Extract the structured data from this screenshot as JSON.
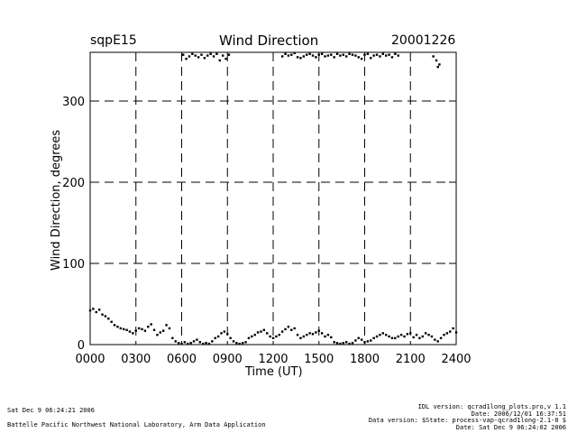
{
  "header": {
    "site": "sqpE15",
    "title": "Wind Direction",
    "date": "20001226"
  },
  "footer": {
    "left_line1": "Sat Dec  9 06:24:21 2006",
    "left_line2": "Battelle Pacific Northwest National Laboratory, Arm Data Application",
    "right_line1": "IDL version: qcrad1long_plots.pro,v 1.1",
    "right_line2": "Date: 2006/12/01 16:37:51",
    "right_line3": "Data version: $State: process-vap-qcrad1long-2.1-0 $",
    "right_line4": "Date: Sat Dec  9 06:24:02 2006"
  },
  "chart_data": {
    "type": "scatter",
    "title": "Wind Direction",
    "xlabel": "Time (UT)",
    "ylabel": "Wind Direction, degrees",
    "xlim": [
      0,
      24
    ],
    "ylim": [
      0,
      360
    ],
    "x_ticks": [
      "0000",
      "0300",
      "0600",
      "0900",
      "1200",
      "1500",
      "1800",
      "2100",
      "2400"
    ],
    "y_ticks": [
      0,
      100,
      200,
      300
    ],
    "grid": "dashed",
    "series": [
      {
        "color": "#000000",
        "x": [
          0.0,
          0.2,
          0.4,
          0.6,
          0.8,
          1.0,
          1.2,
          1.4,
          1.6,
          1.8,
          2.0,
          2.2,
          2.4,
          2.6,
          2.8,
          3.0,
          3.2,
          3.4,
          3.6,
          3.8,
          4.0,
          4.2,
          4.4,
          4.6,
          4.8,
          5.0,
          5.2,
          5.4,
          5.6,
          5.8,
          6.0,
          6.2,
          6.4,
          6.6,
          6.8,
          7.0,
          7.2,
          7.4,
          7.6,
          7.8,
          8.0,
          8.2,
          8.4,
          8.6,
          8.8,
          9.0,
          9.2,
          9.4,
          9.6,
          9.8,
          10.0,
          10.2,
          10.4,
          10.6,
          10.8,
          11.0,
          11.2,
          11.4,
          11.6,
          11.8,
          12.0,
          12.2,
          12.4,
          12.6,
          12.8,
          13.0,
          13.2,
          13.4,
          13.6,
          13.8,
          14.0,
          14.2,
          14.4,
          14.6,
          14.8,
          15.0,
          15.2,
          15.4,
          15.6,
          15.8,
          16.0,
          16.2,
          16.4,
          16.6,
          16.8,
          17.0,
          17.2,
          17.4,
          17.6,
          17.8,
          18.0,
          18.2,
          18.4,
          18.6,
          18.8,
          19.0,
          19.2,
          19.4,
          19.6,
          19.8,
          20.0,
          20.2,
          20.4,
          20.6,
          20.8,
          21.0,
          21.2,
          21.4,
          21.6,
          21.8,
          22.0,
          22.2,
          22.4,
          22.6,
          22.8,
          23.0,
          23.2,
          23.4,
          23.6,
          23.8,
          24.0,
          6.1,
          6.3,
          6.5,
          6.7,
          6.9,
          7.1,
          7.3,
          7.5,
          7.7,
          7.9,
          8.1,
          8.3,
          8.5,
          8.7,
          8.9,
          9.1,
          12.6,
          12.8,
          13.0,
          13.2,
          13.4,
          13.6,
          13.8,
          14.0,
          14.2,
          14.4,
          14.6,
          14.8,
          15.0,
          15.2,
          15.4,
          15.6,
          15.8,
          16.0,
          16.2,
          16.4,
          16.6,
          16.8,
          17.0,
          17.2,
          17.4,
          17.6,
          17.8,
          18.0,
          18.2,
          18.4,
          18.6,
          18.8,
          19.0,
          19.2,
          19.4,
          19.6,
          19.8,
          20.0,
          20.2,
          22.5,
          22.7,
          22.9,
          22.8
        ],
        "y": [
          42,
          44,
          40,
          43,
          37,
          35,
          32,
          28,
          24,
          22,
          20,
          19,
          18,
          16,
          14,
          17,
          20,
          19,
          17,
          22,
          25,
          18,
          12,
          15,
          17,
          24,
          20,
          8,
          4,
          2,
          1,
          3,
          1,
          2,
          4,
          6,
          3,
          1,
          2,
          1,
          4,
          8,
          10,
          14,
          16,
          13,
          8,
          4,
          2,
          1,
          2,
          3,
          8,
          10,
          12,
          15,
          16,
          18,
          14,
          10,
          8,
          10,
          12,
          16,
          19,
          22,
          18,
          20,
          12,
          8,
          10,
          12,
          14,
          13,
          15,
          17,
          14,
          10,
          12,
          9,
          3,
          2,
          1,
          2,
          3,
          1,
          2,
          5,
          8,
          6,
          3,
          4,
          5,
          8,
          10,
          12,
          14,
          12,
          10,
          8,
          8,
          10,
          12,
          10,
          13,
          14,
          9,
          12,
          8,
          10,
          14,
          12,
          10,
          6,
          4,
          8,
          12,
          14,
          16,
          20,
          15,
          357,
          352,
          355,
          358,
          356,
          354,
          357,
          353,
          356,
          358,
          355,
          358,
          350,
          356,
          352,
          357,
          355,
          358,
          356,
          357,
          359,
          354,
          353,
          355,
          357,
          358,
          356,
          354,
          357,
          358,
          355,
          356,
          357,
          354,
          358,
          356,
          357,
          355,
          358,
          357,
          356,
          354,
          352,
          357,
          358,
          353,
          356,
          357,
          355,
          358,
          356,
          357,
          354,
          358,
          356,
          355,
          350,
          345,
          342
        ]
      }
    ]
  }
}
